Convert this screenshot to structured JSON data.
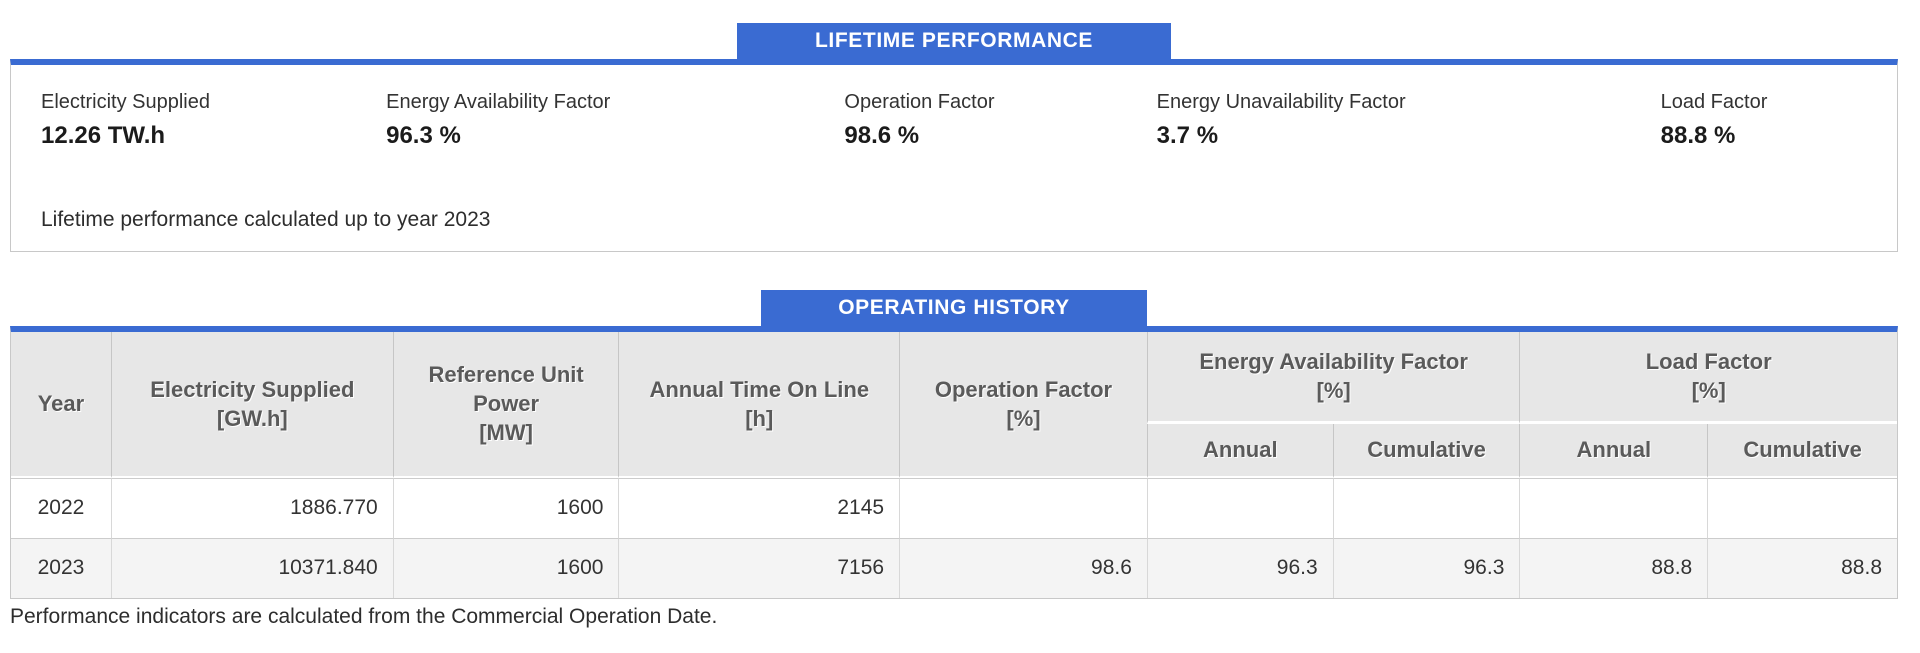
{
  "colors": {
    "accent_blue": "#3a6bd2",
    "header_gray": "#e7e7e7",
    "zebra_row": "#f4f4f4",
    "border_gray": "#c8c8c8"
  },
  "lifetime": {
    "tab_label": "LIFETIME PERFORMANCE",
    "stats": [
      {
        "label": "Electricity Supplied",
        "value": "12.26 TW.h"
      },
      {
        "label": "Energy Availability Factor",
        "value": "96.3 %"
      },
      {
        "label": "Operation Factor",
        "value": "98.6 %"
      },
      {
        "label": "Energy Unavailability Factor",
        "value": "3.7 %"
      },
      {
        "label": "Load Factor",
        "value": "88.8 %"
      }
    ],
    "note": "Lifetime performance calculated up to year 2023"
  },
  "operating_history": {
    "tab_label": "OPERATING HISTORY",
    "table": {
      "columns": {
        "year": "Year",
        "electricity_supplied": "Electricity Supplied\n[GW.h]",
        "reference_unit_power": "Reference Unit\nPower\n[MW]",
        "annual_time_on_line": "Annual Time On Line\n[h]",
        "operation_factor": "Operation Factor\n[%]",
        "energy_availability_factor": "Energy Availability Factor\n[%]",
        "load_factor": "Load Factor\n[%]"
      },
      "sub_columns": [
        "Annual",
        "Cumulative",
        "Annual",
        "Cumulative"
      ],
      "rows": [
        {
          "cells": [
            "2022",
            "1886.770",
            "1600",
            "2145",
            "",
            "",
            "",
            "",
            ""
          ]
        },
        {
          "cells": [
            "2023",
            "10371.840",
            "1600",
            "7156",
            "98.6",
            "96.3",
            "96.3",
            "88.8",
            "88.8"
          ]
        }
      ]
    },
    "note": "Performance indicators are calculated from the Commercial Operation Date."
  }
}
